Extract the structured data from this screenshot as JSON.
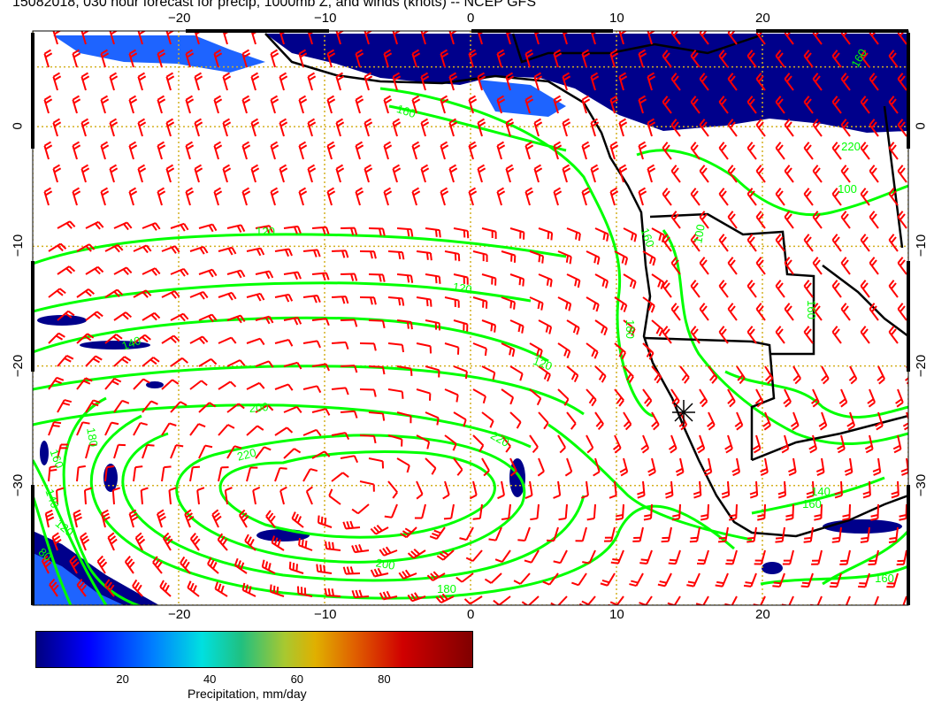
{
  "title": "15082018, 030 hour forecast for precip, 1000mb Z, and winds (knots) -- NCEP GFS",
  "map": {
    "lon_range": [
      -30,
      30
    ],
    "lat_range": [
      -40,
      8
    ],
    "lon_ticks": [
      {
        "lon": -20,
        "label": "−20"
      },
      {
        "lon": -10,
        "label": "−10"
      },
      {
        "lon": 0,
        "label": "0"
      },
      {
        "lon": 10,
        "label": "10"
      },
      {
        "lon": 20,
        "label": "20"
      }
    ],
    "lat_ticks": [
      {
        "lat": 0,
        "label": "0"
      },
      {
        "lat": -10,
        "label": "−10"
      },
      {
        "lat": -20,
        "label": "−20"
      },
      {
        "lat": -30,
        "label": "−30"
      }
    ],
    "contour_labels": [
      "160",
      "160",
      "120",
      "120",
      "140",
      "120",
      "200",
      "220",
      "180",
      "220",
      "200",
      "180",
      "160",
      "140",
      "120",
      "80",
      "160",
      "100",
      "160",
      "180",
      "160",
      "220",
      "100",
      "140",
      "160"
    ],
    "colors": {
      "contour": "#00ff00",
      "wind_barb": "#ff0000",
      "coast": "#000000",
      "grid": "#d4b020",
      "precip_low": "#00008b",
      "precip_mid": "#1e64ff"
    }
  },
  "colorbar": {
    "label": "Precipitation, mm/day",
    "ticks": [
      "20",
      "40",
      "60",
      "80"
    ],
    "range": [
      0,
      100
    ]
  }
}
